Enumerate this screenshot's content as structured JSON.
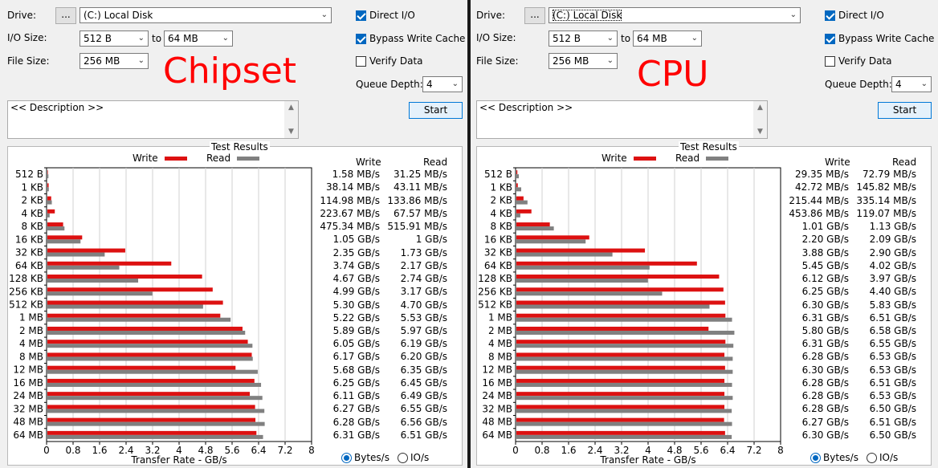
{
  "labels": {
    "drive": "Drive:",
    "io_size": "I/O Size:",
    "to": "to",
    "file_size": "File Size:",
    "direct_io": "Direct I/O",
    "bypass_write_cache": "Bypass Write Cache",
    "verify_data": "Verify Data",
    "queue_depth": "Queue Depth:",
    "description": "<< Description >>",
    "start": "Start",
    "browse": "...",
    "test_results": "Test Results",
    "write": "Write",
    "read": "Read",
    "xlabel": "Transfer Rate - GB/s",
    "bytes_s": "Bytes/s",
    "io_s": "IO/s"
  },
  "colors": {
    "write": "#dd1111",
    "read": "#808080",
    "overlay": "#ff0000"
  },
  "block_sizes": [
    "512 B",
    "1 KB",
    "2 KB",
    "4 KB",
    "8 KB",
    "16 KB",
    "32 KB",
    "64 KB",
    "128 KB",
    "256 KB",
    "512 KB",
    "1 MB",
    "2 MB",
    "4 MB",
    "8 MB",
    "12 MB",
    "16 MB",
    "24 MB",
    "32 MB",
    "48 MB",
    "64 MB"
  ],
  "x_ticks": [
    "0",
    "0.8",
    "1.6",
    "2.4",
    "3.2",
    "4",
    "4.8",
    "5.6",
    "6.4",
    "7.2",
    "8"
  ],
  "panels": [
    {
      "overlay_title": "Chipset",
      "drive": "(C:) Local Disk",
      "io_from": "512 B",
      "io_to": "64 MB",
      "file_size": "256 MB",
      "queue_depth": "4",
      "direct_io": true,
      "bypass_write_cache": true,
      "verify_data": false,
      "units": "Bytes/s",
      "chart_data": {
        "type": "bar",
        "title": "Test Results",
        "xlabel": "Transfer Rate - GB/s",
        "xlim": [
          0,
          8
        ],
        "categories": [
          "512 B",
          "1 KB",
          "2 KB",
          "4 KB",
          "8 KB",
          "16 KB",
          "32 KB",
          "64 KB",
          "128 KB",
          "256 KB",
          "512 KB",
          "1 MB",
          "2 MB",
          "4 MB",
          "8 MB",
          "12 MB",
          "16 MB",
          "24 MB",
          "32 MB",
          "48 MB",
          "64 MB"
        ],
        "series": [
          {
            "name": "Write",
            "values": [
              0.00158,
              0.03814,
              0.11498,
              0.22367,
              0.47534,
              1.05,
              2.35,
              3.74,
              4.67,
              4.99,
              5.3,
              5.22,
              5.89,
              6.05,
              6.17,
              5.68,
              6.25,
              6.11,
              6.27,
              6.28,
              6.31
            ]
          },
          {
            "name": "Read",
            "values": [
              0.03125,
              0.04311,
              0.13386,
              0.06757,
              0.51591,
              1.0,
              1.73,
              2.17,
              2.74,
              3.17,
              4.7,
              5.53,
              5.97,
              6.19,
              6.2,
              6.35,
              6.45,
              6.49,
              6.55,
              6.56,
              6.51
            ]
          }
        ]
      },
      "write_text": [
        "1.58 MB/s",
        "38.14 MB/s",
        "114.98 MB/s",
        "223.67 MB/s",
        "475.34 MB/s",
        "1.05 GB/s",
        "2.35 GB/s",
        "3.74 GB/s",
        "4.67 GB/s",
        "4.99 GB/s",
        "5.30 GB/s",
        "5.22 GB/s",
        "5.89 GB/s",
        "6.05 GB/s",
        "6.17 GB/s",
        "5.68 GB/s",
        "6.25 GB/s",
        "6.11 GB/s",
        "6.27 GB/s",
        "6.28 GB/s",
        "6.31 GB/s"
      ],
      "read_text": [
        "31.25 MB/s",
        "43.11 MB/s",
        "133.86 MB/s",
        "67.57 MB/s",
        "515.91 MB/s",
        "1 GB/s",
        "1.73 GB/s",
        "2.17 GB/s",
        "2.74 GB/s",
        "3.17 GB/s",
        "4.70 GB/s",
        "5.53 GB/s",
        "5.97 GB/s",
        "6.19 GB/s",
        "6.20 GB/s",
        "6.35 GB/s",
        "6.45 GB/s",
        "6.49 GB/s",
        "6.55 GB/s",
        "6.56 GB/s",
        "6.51 GB/s"
      ]
    },
    {
      "overlay_title": "CPU",
      "drive": "(C:) Local Disk",
      "io_from": "512 B",
      "io_to": "64 MB",
      "file_size": "256 MB",
      "queue_depth": "4",
      "direct_io": true,
      "bypass_write_cache": true,
      "verify_data": false,
      "units": "Bytes/s",
      "chart_data": {
        "type": "bar",
        "title": "Test Results",
        "xlabel": "Transfer Rate - GB/s",
        "xlim": [
          0,
          8
        ],
        "categories": [
          "512 B",
          "1 KB",
          "2 KB",
          "4 KB",
          "8 KB",
          "16 KB",
          "32 KB",
          "64 KB",
          "128 KB",
          "256 KB",
          "512 KB",
          "1 MB",
          "2 MB",
          "4 MB",
          "8 MB",
          "12 MB",
          "16 MB",
          "24 MB",
          "32 MB",
          "48 MB",
          "64 MB"
        ],
        "series": [
          {
            "name": "Write",
            "values": [
              0.02935,
              0.04272,
              0.21544,
              0.45386,
              1.01,
              2.2,
              3.88,
              5.45,
              6.12,
              6.25,
              6.3,
              6.31,
              5.8,
              6.31,
              6.28,
              6.3,
              6.28,
              6.28,
              6.28,
              6.27,
              6.3
            ]
          },
          {
            "name": "Read",
            "values": [
              0.07279,
              0.14582,
              0.33514,
              0.11907,
              1.13,
              2.09,
              2.9,
              4.02,
              3.97,
              4.4,
              5.83,
              6.51,
              6.58,
              6.55,
              6.53,
              6.53,
              6.51,
              6.53,
              6.5,
              6.51,
              6.5
            ]
          }
        ]
      },
      "write_text": [
        "29.35 MB/s",
        "42.72 MB/s",
        "215.44 MB/s",
        "453.86 MB/s",
        "1.01 GB/s",
        "2.20 GB/s",
        "3.88 GB/s",
        "5.45 GB/s",
        "6.12 GB/s",
        "6.25 GB/s",
        "6.30 GB/s",
        "6.31 GB/s",
        "5.80 GB/s",
        "6.31 GB/s",
        "6.28 GB/s",
        "6.30 GB/s",
        "6.28 GB/s",
        "6.28 GB/s",
        "6.28 GB/s",
        "6.27 GB/s",
        "6.30 GB/s"
      ],
      "read_text": [
        "72.79 MB/s",
        "145.82 MB/s",
        "335.14 MB/s",
        "119.07 MB/s",
        "1.13 GB/s",
        "2.09 GB/s",
        "2.90 GB/s",
        "4.02 GB/s",
        "3.97 GB/s",
        "4.40 GB/s",
        "5.83 GB/s",
        "6.51 GB/s",
        "6.58 GB/s",
        "6.55 GB/s",
        "6.53 GB/s",
        "6.53 GB/s",
        "6.51 GB/s",
        "6.53 GB/s",
        "6.50 GB/s",
        "6.51 GB/s",
        "6.50 GB/s"
      ]
    }
  ]
}
